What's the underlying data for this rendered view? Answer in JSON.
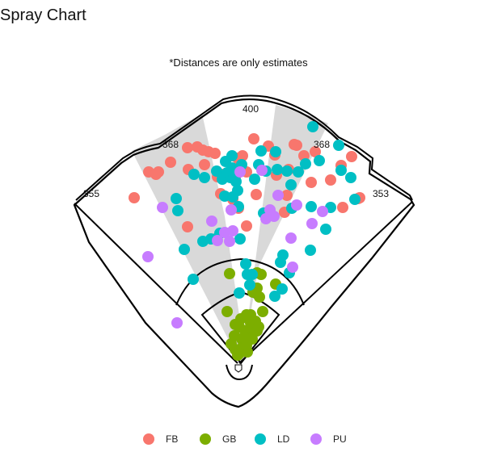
{
  "chart_data": {
    "type": "scatter",
    "title": "Spray Chart",
    "note": "*Distances are only estimates",
    "distance_labels": {
      "left_line": "355",
      "left_center": "368",
      "center": "400",
      "right_center": "368",
      "right_line": "353"
    },
    "legend_placement": "bottom",
    "series": [
      {
        "name": "FB",
        "color": "#F8766D",
        "points": [
          [
            -130,
            245
          ],
          [
            -112,
            213
          ],
          [
            -103,
            216
          ],
          [
            -85,
            201
          ],
          [
            -64,
            183
          ],
          [
            -63,
            210
          ],
          [
            -52,
            182
          ],
          [
            -45,
            186
          ],
          [
            -43,
            204
          ],
          [
            -38,
            188
          ],
          [
            -30,
            190
          ],
          [
            -27,
            219
          ],
          [
            -22,
            216
          ],
          [
            -23,
            240
          ],
          [
            -8,
            247
          ],
          [
            -2,
            196
          ],
          [
            -3,
            209
          ],
          [
            -5,
            220
          ],
          [
            -1,
            258
          ],
          [
            4,
            193
          ],
          [
            9,
            213
          ],
          [
            2,
            212
          ],
          [
            18,
            172
          ],
          [
            21,
            241
          ],
          [
            36,
            181
          ],
          [
            46,
            217
          ],
          [
            44,
            192
          ],
          [
            59,
            242
          ],
          [
            61,
            210
          ],
          [
            71,
            180
          ],
          [
            68,
            179
          ],
          [
            80,
            193
          ],
          [
            89,
            226
          ],
          [
            94,
            188
          ],
          [
            113,
            223
          ],
          [
            126,
            205
          ],
          [
            128,
            257
          ],
          [
            139,
            194
          ],
          [
            147,
            246
          ],
          [
            149,
            245
          ],
          [
            -64,
            281
          ],
          [
            9,
            280
          ],
          [
            56,
            263
          ],
          [
            -100,
            213
          ]
        ]
      },
      {
        "name": "GB",
        "color": "#7CAE00",
        "points": [
          [
            -12,
            339
          ],
          [
            -15,
            386
          ],
          [
            -5,
            402
          ],
          [
            -10,
            426
          ],
          [
            -5,
            433
          ],
          [
            -2,
            440
          ],
          [
            -6,
            416
          ],
          [
            0,
            405
          ],
          [
            2,
            395
          ],
          [
            3,
            420
          ],
          [
            3,
            432
          ],
          [
            5,
            428
          ],
          [
            7,
            410
          ],
          [
            7,
            420
          ],
          [
            9,
            428
          ],
          [
            10,
            436
          ],
          [
            12,
            408
          ],
          [
            14,
            390
          ],
          [
            14,
            400
          ],
          [
            16,
            420
          ],
          [
            18,
            408
          ],
          [
            20,
            398
          ],
          [
            22,
            410
          ],
          [
            24,
            405
          ],
          [
            22,
            338
          ],
          [
            22,
            357
          ],
          [
            25,
            368
          ],
          [
            27,
            340
          ],
          [
            29,
            386
          ],
          [
            45,
            352
          ],
          [
            17,
            362
          ],
          [
            9,
            390
          ],
          [
            6,
            418
          ],
          [
            0,
            438
          ]
        ]
      },
      {
        "name": "LD",
        "color": "#00BFC4",
        "points": [
          [
            -78,
            246
          ],
          [
            -76,
            261
          ],
          [
            -68,
            309
          ],
          [
            -56,
            216
          ],
          [
            -45,
            299
          ],
          [
            -43,
            220
          ],
          [
            -35,
            296
          ],
          [
            -29,
            296
          ],
          [
            -28,
            212
          ],
          [
            -24,
            289
          ],
          [
            -21,
            222
          ],
          [
            -18,
            243
          ],
          [
            -17,
            200
          ],
          [
            -15,
            214
          ],
          [
            -11,
            220
          ],
          [
            -9,
            193
          ],
          [
            -9,
            208
          ],
          [
            -7,
            218
          ],
          [
            -8,
            244
          ],
          [
            -4,
            225
          ],
          [
            -2,
            236
          ],
          [
            -1,
            256
          ],
          [
            1,
            296
          ],
          [
            3,
            204
          ],
          [
            8,
            327
          ],
          [
            10,
            340
          ],
          [
            13,
            353
          ],
          [
            16,
            340
          ],
          [
            19,
            222
          ],
          [
            24,
            204
          ],
          [
            27,
            187
          ],
          [
            30,
            264
          ],
          [
            33,
            212
          ],
          [
            38,
            262
          ],
          [
            39,
            266
          ],
          [
            45,
            188
          ],
          [
            47,
            210
          ],
          [
            51,
            325
          ],
          [
            53,
            358
          ],
          [
            59,
            212
          ],
          [
            62,
            338
          ],
          [
            64,
            229
          ],
          [
            65,
            258
          ],
          [
            73,
            213
          ],
          [
            82,
            203
          ],
          [
            89,
            256
          ],
          [
            91,
            157
          ],
          [
            99,
            199
          ],
          [
            107,
            284
          ],
          [
            113,
            257
          ],
          [
            123,
            180
          ],
          [
            126,
            211
          ],
          [
            138,
            220
          ],
          [
            143,
            247
          ],
          [
            -57,
            346
          ],
          [
            0,
            363
          ],
          [
            44,
            367
          ],
          [
            88,
            310
          ],
          [
            54,
            316
          ]
        ]
      },
      {
        "name": "PU",
        "color": "#C77CFF",
        "points": [
          [
            -113,
            318
          ],
          [
            -95,
            257
          ],
          [
            -77,
            400
          ],
          [
            -34,
            274
          ],
          [
            -27,
            298
          ],
          [
            -18,
            288
          ],
          [
            -12,
            299
          ],
          [
            -10,
            260
          ],
          [
            -8,
            286
          ],
          [
            1,
            213
          ],
          [
            28,
            211
          ],
          [
            33,
            271
          ],
          [
            38,
            260
          ],
          [
            43,
            268
          ],
          [
            48,
            242
          ],
          [
            64,
            295
          ],
          [
            71,
            254
          ],
          [
            90,
            277
          ],
          [
            103,
            262
          ],
          [
            66,
            331
          ]
        ]
      }
    ]
  }
}
